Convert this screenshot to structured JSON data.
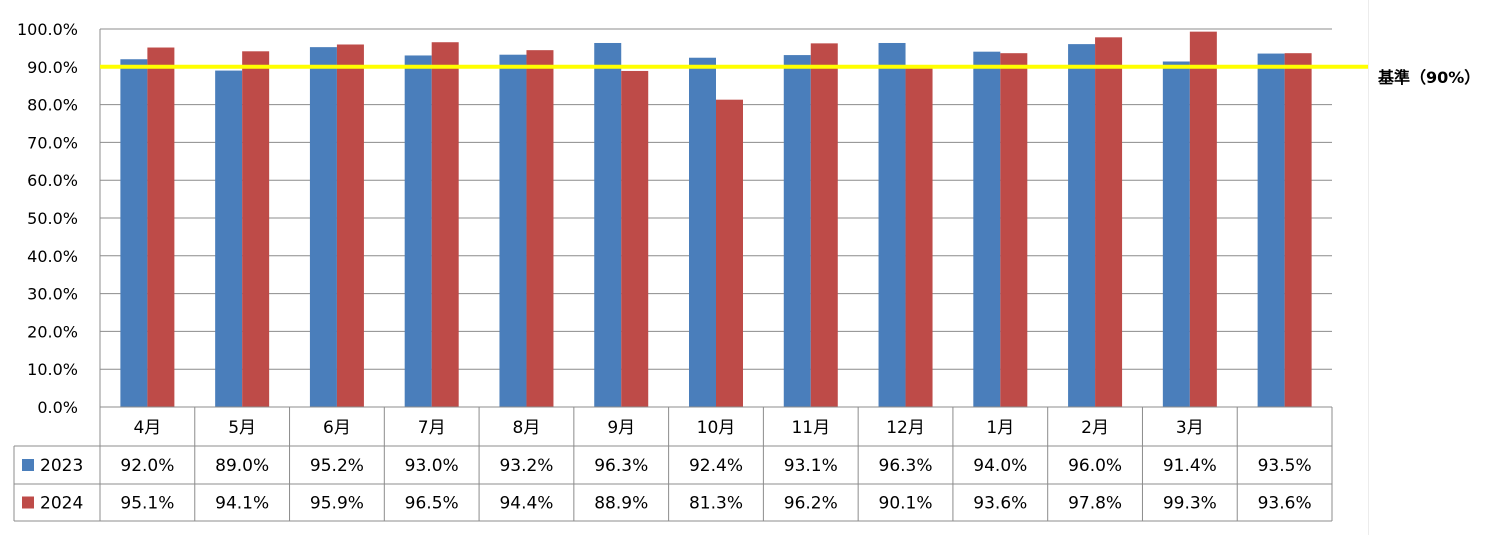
{
  "chart_data": {
    "type": "bar",
    "categories": [
      "4月",
      "5月",
      "6月",
      "7月",
      "8月",
      "9月",
      "10月",
      "11月",
      "12月",
      "1月",
      "2月",
      "3月",
      ""
    ],
    "series": [
      {
        "name": "2023",
        "values": [
          92.0,
          89.0,
          95.2,
          93.0,
          93.2,
          96.3,
          92.4,
          93.1,
          96.3,
          94.0,
          96.0,
          91.4,
          93.5
        ]
      },
      {
        "name": "2024",
        "values": [
          95.1,
          94.1,
          95.9,
          96.5,
          94.4,
          88.9,
          81.3,
          96.2,
          90.1,
          93.6,
          97.8,
          99.3,
          93.6
        ]
      }
    ],
    "table_values": [
      [
        "92.0%",
        "89.0%",
        "95.2%",
        "93.0%",
        "93.2%",
        "96.3%",
        "92.4%",
        "93.1%",
        "96.3%",
        "94.0%",
        "96.0%",
        "91.4%",
        "93.5%"
      ],
      [
        "95.1%",
        "94.1%",
        "95.9%",
        "96.5%",
        "94.4%",
        "88.9%",
        "81.3%",
        "96.2%",
        "90.1%",
        "93.6%",
        "97.8%",
        "99.3%",
        "93.6%"
      ]
    ],
    "y_ticks": [
      "0.0%",
      "10.0%",
      "20.0%",
      "30.0%",
      "40.0%",
      "50.0%",
      "60.0%",
      "70.0%",
      "80.0%",
      "90.0%",
      "100.0%"
    ],
    "ylim": [
      0,
      100
    ],
    "reference_line": {
      "value": 90,
      "label": "基準（90%）",
      "color": "#ffff00"
    },
    "grid": true,
    "legend": "data-table",
    "colors": {
      "2023": "#4a7ebb",
      "2024": "#be4b48"
    }
  }
}
